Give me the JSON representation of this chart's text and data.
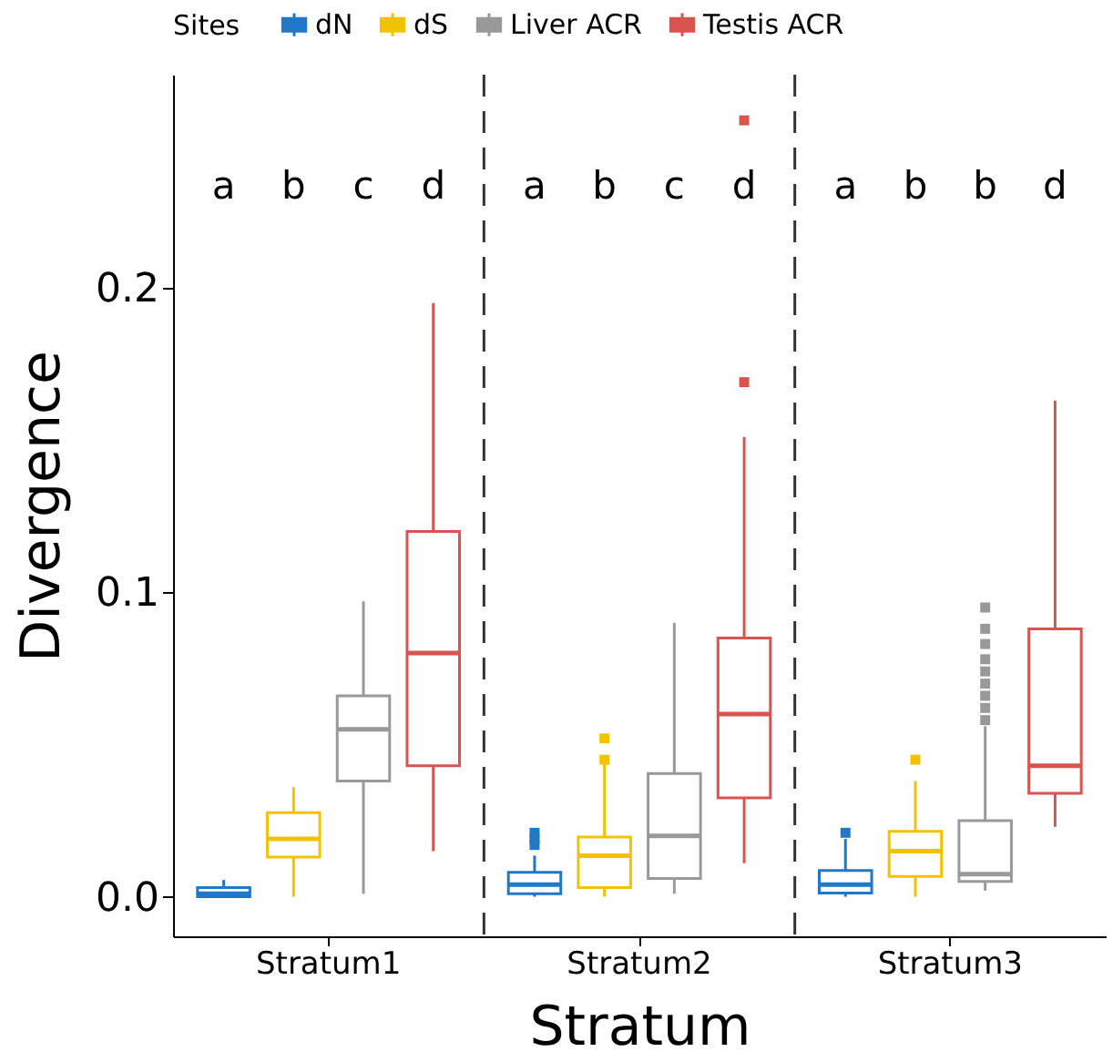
{
  "chart_data": {
    "type": "box",
    "xlabel": "Stratum",
    "ylabel": "Divergence",
    "legend_title": "Sites",
    "legend": "top",
    "grid": false,
    "categories": [
      "Stratum1",
      "Stratum2",
      "Stratum3"
    ],
    "ylim": [
      -0.013,
      0.27
    ],
    "yticks": [
      {
        "value": 0,
        "label": "0.0"
      },
      0.1,
      0.2
    ],
    "series": [
      {
        "name": "dN",
        "color": "#1f78c8",
        "boxes": [
          {
            "low": 0,
            "q1": 0,
            "median": 0.001,
            "q3": 0.003,
            "high": 0.0055
          },
          {
            "low": 0,
            "q1": 0.001,
            "median": 0.004,
            "q3": 0.008,
            "high": 0.0135,
            "outliers": [
              0.017,
              0.019,
              0.021
            ]
          },
          {
            "low": 0,
            "q1": 0.0012,
            "median": 0.004,
            "q3": 0.0086,
            "high": 0.019,
            "outliers": [
              0.021
            ]
          }
        ]
      },
      {
        "name": "dS",
        "color": "#f2c200",
        "boxes": [
          {
            "low": 0,
            "q1": 0.013,
            "median": 0.019,
            "q3": 0.0276,
            "high": 0.036
          },
          {
            "low": 0,
            "q1": 0.003,
            "median": 0.0135,
            "q3": 0.0196,
            "high": 0.0436,
            "outliers": [
              0.045,
              0.052
            ]
          },
          {
            "low": 0,
            "q1": 0.0067,
            "median": 0.015,
            "q3": 0.0215,
            "high": 0.038,
            "outliers": [
              0.045
            ]
          }
        ]
      },
      {
        "name": "Liver ACR",
        "color": "#999999",
        "boxes": [
          {
            "low": 0.001,
            "q1": 0.038,
            "median": 0.055,
            "q3": 0.066,
            "high": 0.097
          },
          {
            "low": 0.001,
            "q1": 0.006,
            "median": 0.02,
            "q3": 0.0405,
            "high": 0.09
          },
          {
            "low": 0.002,
            "q1": 0.005,
            "median": 0.0074,
            "q3": 0.025,
            "high": 0.056,
            "outliers": [
              0.058,
              0.062,
              0.066,
              0.07,
              0.074,
              0.078,
              0.083,
              0.088,
              0.095
            ]
          }
        ]
      },
      {
        "name": "Testis ACR",
        "color": "#d9534f",
        "boxes": [
          {
            "low": 0.015,
            "q1": 0.043,
            "median": 0.08,
            "q3": 0.12,
            "high": 0.195
          },
          {
            "low": 0.011,
            "q1": 0.0325,
            "median": 0.06,
            "q3": 0.085,
            "high": 0.151,
            "outliers": [
              0.169,
              0.255
            ]
          },
          {
            "low": 0.023,
            "q1": 0.034,
            "median": 0.043,
            "q3": 0.088,
            "high": 0.163
          }
        ]
      }
    ],
    "annotations": [
      "a",
      "b",
      "c",
      "d",
      "a",
      "b",
      "c",
      "d",
      "a",
      "b",
      "b",
      "d"
    ]
  }
}
